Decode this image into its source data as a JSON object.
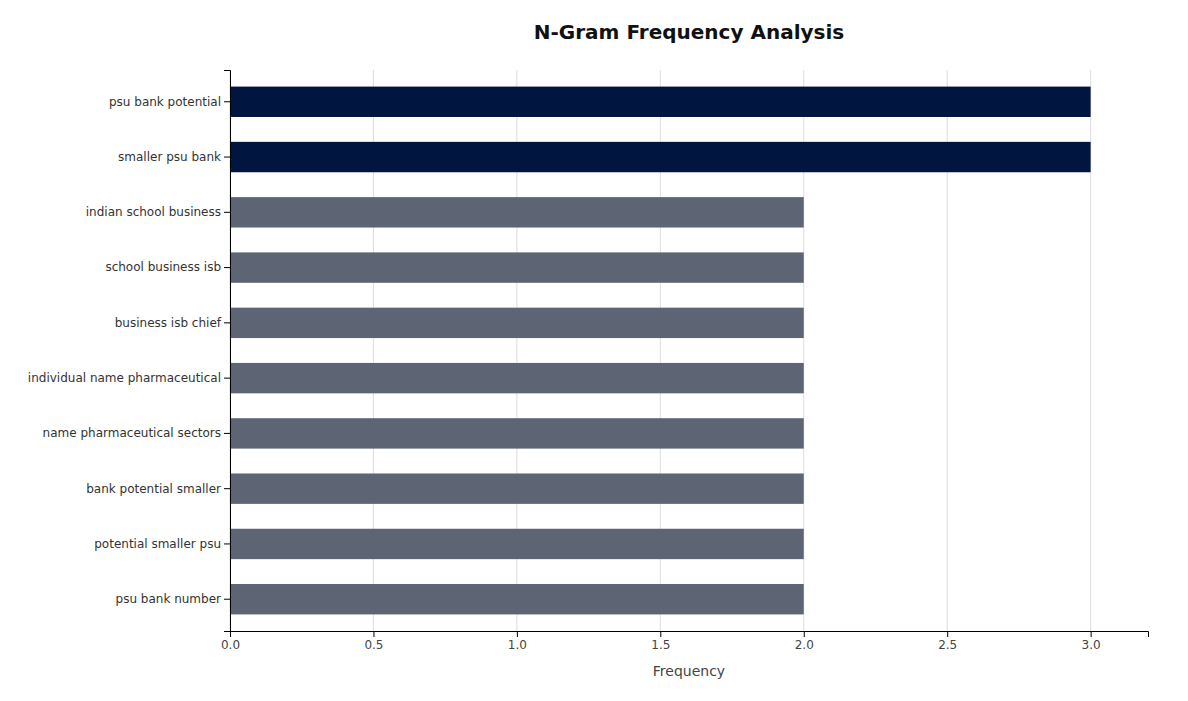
{
  "chart_data": {
    "type": "bar",
    "orientation": "horizontal",
    "title": "N-Gram Frequency Analysis",
    "xlabel": "Frequency",
    "categories": [
      "psu bank number",
      "potential smaller psu",
      "bank potential smaller",
      "name pharmaceutical sectors",
      "individual name pharmaceutical",
      "business isb chief",
      "school business isb",
      "indian school business",
      "smaller psu bank",
      "psu bank potential"
    ],
    "values": [
      2,
      2,
      2,
      2,
      2,
      2,
      2,
      2,
      3,
      3
    ],
    "colors": [
      "#5d6474",
      "#5d6474",
      "#5d6474",
      "#5d6474",
      "#5d6474",
      "#5d6474",
      "#5d6474",
      "#5d6474",
      "#001540",
      "#001540"
    ],
    "xlim": [
      0,
      3.2
    ],
    "xticks": [
      {
        "value": 0.0,
        "label": "0.0"
      },
      0.5,
      {
        "value": 1.0,
        "label": "1.0"
      },
      1.5,
      {
        "value": 2.0,
        "label": "2.0"
      },
      2.5,
      {
        "value": 3.0,
        "label": "3.0"
      }
    ],
    "grid": true
  }
}
